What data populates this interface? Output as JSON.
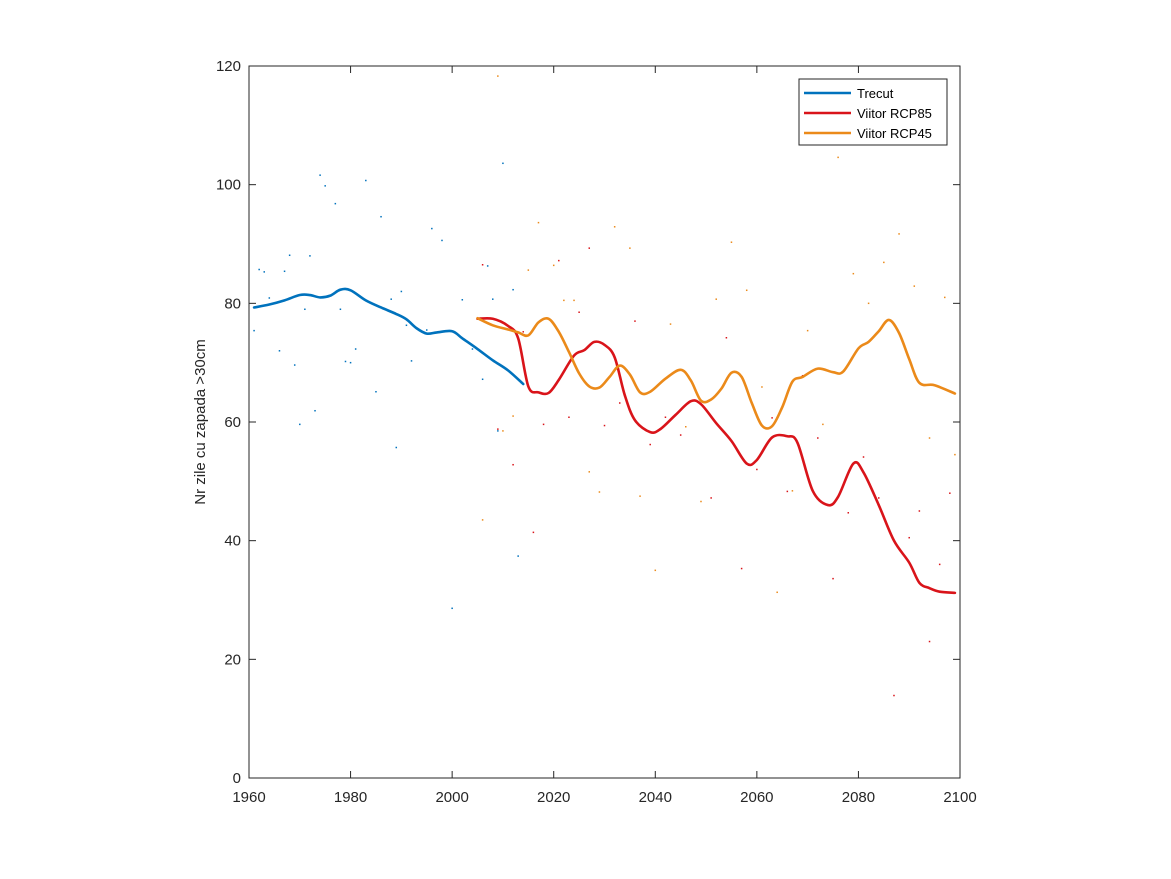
{
  "chart_data": {
    "type": "line",
    "title": "",
    "xlabel": "",
    "ylabel": "Nr zile cu zapada >30cm",
    "xlim": [
      1960,
      2100
    ],
    "ylim": [
      0,
      120
    ],
    "xticks": [
      1960,
      1980,
      2000,
      2020,
      2040,
      2060,
      2080,
      2100
    ],
    "yticks": [
      0,
      20,
      40,
      60,
      80,
      100,
      120
    ],
    "grid": false,
    "legend_position": "top-right",
    "series": [
      {
        "name": "Trecut",
        "color": "#0072BD",
        "x": [
          1961,
          1964,
          1967,
          1970,
          1972,
          1974,
          1976,
          1978,
          1980,
          1983,
          1986,
          1989,
          1991,
          1993,
          1995,
          1997,
          2000,
          2002,
          2005,
          2008,
          2011,
          2014
        ],
        "y": [
          79.3,
          79.8,
          80.5,
          81.4,
          81.4,
          81.0,
          81.3,
          82.3,
          82.2,
          80.5,
          79.3,
          78.2,
          77.3,
          75.8,
          74.9,
          75.1,
          75.3,
          74.1,
          72.3,
          70.4,
          68.7,
          66.4
        ]
      },
      {
        "name": "Viitor RCP85",
        "color": "#D9141A",
        "x": [
          2005,
          2008,
          2011,
          2013,
          2015,
          2017,
          2019,
          2021,
          2024,
          2026,
          2028,
          2030,
          2032,
          2034,
          2036,
          2039,
          2041,
          2044,
          2047,
          2049,
          2052,
          2055,
          2058,
          2060,
          2063,
          2066,
          2068,
          2071,
          2074,
          2076,
          2079,
          2081,
          2084,
          2087,
          2090,
          2092,
          2094,
          2096,
          2099
        ],
        "y": [
          77.4,
          77.4,
          76.2,
          74.1,
          66.0,
          65.0,
          64.9,
          67.1,
          71.2,
          72.1,
          73.5,
          73.0,
          70.9,
          64.5,
          60.3,
          58.3,
          58.8,
          61.2,
          63.5,
          63.0,
          59.8,
          56.8,
          53.0,
          53.6,
          57.4,
          57.6,
          56.5,
          48.4,
          46.0,
          47.4,
          53.0,
          51.5,
          46.0,
          40.0,
          36.3,
          32.9,
          32.0,
          31.4,
          31.2
        ]
      },
      {
        "name": "Viitor RCP45",
        "color": "#EB8A1A",
        "x": [
          2005,
          2008,
          2011,
          2013,
          2015,
          2017,
          2019,
          2021,
          2023,
          2025,
          2027,
          2029,
          2031,
          2033,
          2035,
          2037,
          2039,
          2042,
          2045,
          2047,
          2049,
          2051,
          2053,
          2055,
          2057,
          2059,
          2061,
          2063,
          2065,
          2067,
          2069,
          2072,
          2075,
          2077,
          2080,
          2082,
          2084,
          2086,
          2088,
          2090,
          2092,
          2095,
          2099
        ],
        "y": [
          77.5,
          76.3,
          75.6,
          75.1,
          74.6,
          76.8,
          77.4,
          75.2,
          71.8,
          68.2,
          66.0,
          65.8,
          67.6,
          69.5,
          68.0,
          65.0,
          65.1,
          67.3,
          68.8,
          67.0,
          63.6,
          63.8,
          65.6,
          68.3,
          67.6,
          63.2,
          59.4,
          59.3,
          62.5,
          66.8,
          67.6,
          69.0,
          68.4,
          68.5,
          72.4,
          73.5,
          75.3,
          77.2,
          75.0,
          70.6,
          66.6,
          66.2,
          64.8
        ]
      }
    ],
    "scatter_points": [
      {
        "series": "Trecut",
        "x": [
          1961,
          1962,
          1963,
          1964,
          1966,
          1967,
          1968,
          1969,
          1970,
          1971,
          1972,
          1973,
          1974,
          1975,
          1977,
          1978,
          1979,
          1980,
          1981,
          1983,
          1985,
          1986,
          1988,
          1989,
          1990,
          1991,
          1992,
          1995,
          1996,
          1998,
          2000,
          2002,
          2004,
          2006,
          2007,
          2008,
          2009,
          2010,
          2012,
          2013
        ],
        "y": [
          75.4,
          85.7,
          85.3,
          80.9,
          72.0,
          85.4,
          88.1,
          69.6,
          59.6,
          79.0,
          88.0,
          61.9,
          101.6,
          99.8,
          96.8,
          79.0,
          70.2,
          70.0,
          72.3,
          100.7,
          65.1,
          94.6,
          80.7,
          55.7,
          82.0,
          76.3,
          70.3,
          75.5,
          92.6,
          90.6,
          28.6,
          80.6,
          72.3,
          67.2,
          86.3,
          80.7,
          58.5,
          103.6,
          82.3,
          37.4
        ]
      },
      {
        "series": "Viitor RCP85",
        "x": [
          2006,
          2009,
          2012,
          2014,
          2016,
          2018,
          2021,
          2023,
          2025,
          2027,
          2030,
          2033,
          2036,
          2039,
          2042,
          2045,
          2048,
          2051,
          2054,
          2057,
          2060,
          2063,
          2066,
          2069,
          2072,
          2075,
          2078,
          2081,
          2084,
          2087,
          2090,
          2092,
          2094,
          2096,
          2098
        ],
        "y": [
          86.5,
          58.8,
          52.8,
          75.2,
          41.4,
          59.6,
          87.2,
          60.8,
          78.5,
          89.3,
          59.4,
          63.2,
          77.0,
          56.2,
          60.8,
          57.8,
          63.5,
          47.2,
          74.2,
          35.3,
          52.0,
          60.7,
          48.3,
          67.8,
          57.3,
          33.6,
          44.7,
          54.1,
          47.2,
          13.9,
          40.5,
          45.0,
          23.0,
          36.0,
          48.0
        ]
      },
      {
        "series": "Viitor RCP45",
        "x": [
          2006,
          2009,
          2010,
          2012,
          2015,
          2017,
          2020,
          2022,
          2024,
          2027,
          2029,
          2032,
          2035,
          2037,
          2040,
          2043,
          2046,
          2049,
          2052,
          2055,
          2058,
          2061,
          2064,
          2067,
          2070,
          2073,
          2076,
          2079,
          2082,
          2085,
          2088,
          2091,
          2094,
          2097,
          2099
        ],
        "y": [
          43.5,
          118.3,
          58.5,
          61.0,
          85.6,
          93.6,
          86.4,
          80.5,
          80.5,
          51.6,
          48.2,
          92.9,
          89.3,
          47.5,
          35.0,
          76.5,
          59.2,
          46.6,
          80.7,
          90.3,
          82.2,
          65.9,
          31.3,
          48.4,
          75.4,
          59.6,
          104.6,
          85.0,
          80.0,
          86.9,
          91.7,
          82.9,
          57.3,
          81.0,
          54.5
        ]
      }
    ]
  }
}
